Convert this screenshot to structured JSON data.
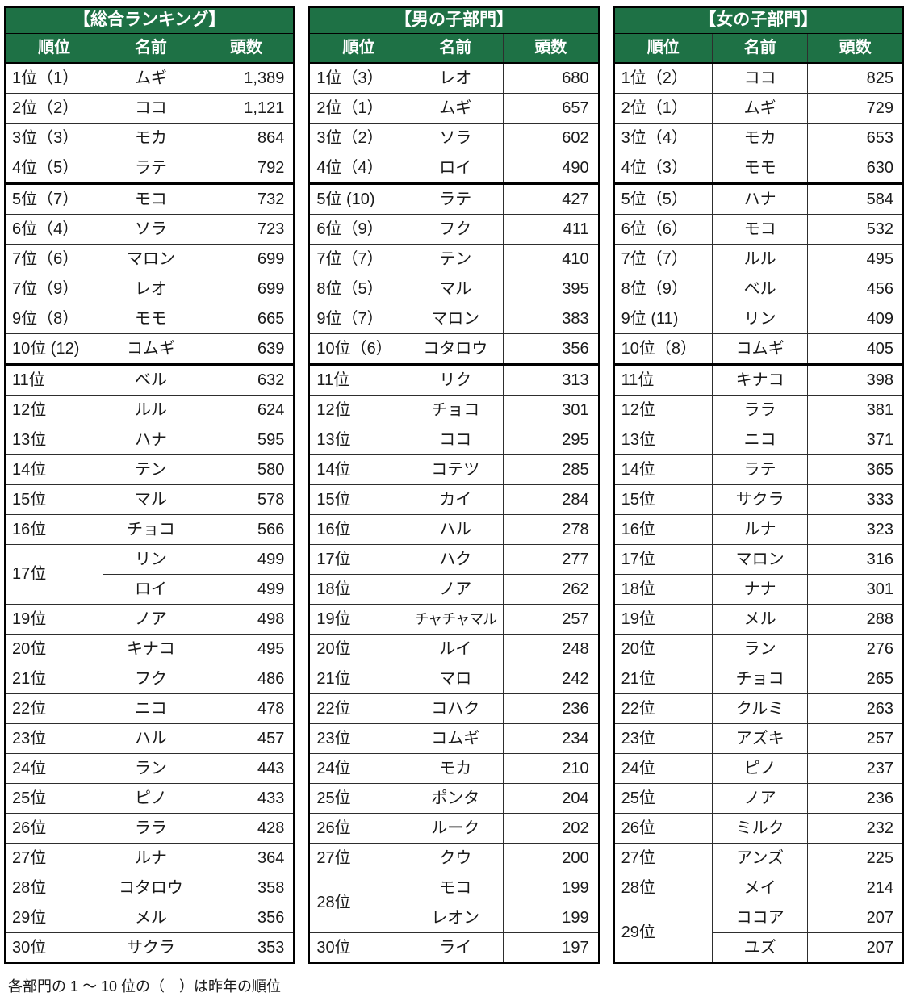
{
  "footnote": "各部門の 1 ～ 10 位の（　）は昨年の順位",
  "columns": {
    "rank": "順位",
    "name": "名前",
    "count": "頭数"
  },
  "colors": {
    "header_green": "#1e7145",
    "header_text": "#ffffff"
  },
  "tables": [
    {
      "title": "【総合ランキング】",
      "rows": [
        {
          "rank": "1位（1）",
          "name": "ムギ",
          "count": "1,389"
        },
        {
          "rank": "2位（2）",
          "name": "ココ",
          "count": "1,121"
        },
        {
          "rank": "3位（3）",
          "name": "モカ",
          "count": "864"
        },
        {
          "rank": "4位（5）",
          "name": "ラテ",
          "count": "792"
        },
        {
          "rank": "5位（7）",
          "name": "モコ",
          "count": "732"
        },
        {
          "rank": "6位（4）",
          "name": "ソラ",
          "count": "723"
        },
        {
          "rank": "7位（6）",
          "name": "マロン",
          "count": "699"
        },
        {
          "rank": "7位（9）",
          "name": "レオ",
          "count": "699"
        },
        {
          "rank": "9位（8）",
          "name": "モモ",
          "count": "665"
        },
        {
          "rank": "10位 (12)",
          "name": "コムギ",
          "count": "639"
        },
        {
          "rank": "11位",
          "name": "ベル",
          "count": "632"
        },
        {
          "rank": "12位",
          "name": "ルル",
          "count": "624"
        },
        {
          "rank": "13位",
          "name": "ハナ",
          "count": "595"
        },
        {
          "rank": "14位",
          "name": "テン",
          "count": "580"
        },
        {
          "rank": "15位",
          "name": "マル",
          "count": "578"
        },
        {
          "rank": "16位",
          "name": "チョコ",
          "count": "566"
        },
        {
          "rank": "17位",
          "rank_rowspan": 2,
          "name": "リン",
          "count": "499"
        },
        {
          "rank": null,
          "name": "ロイ",
          "count": "499"
        },
        {
          "rank": "19位",
          "name": "ノア",
          "count": "498"
        },
        {
          "rank": "20位",
          "name": "キナコ",
          "count": "495"
        },
        {
          "rank": "21位",
          "name": "フク",
          "count": "486"
        },
        {
          "rank": "22位",
          "name": "ニコ",
          "count": "478"
        },
        {
          "rank": "23位",
          "name": "ハル",
          "count": "457"
        },
        {
          "rank": "24位",
          "name": "ラン",
          "count": "443"
        },
        {
          "rank": "25位",
          "name": "ピノ",
          "count": "433"
        },
        {
          "rank": "26位",
          "name": "ララ",
          "count": "428"
        },
        {
          "rank": "27位",
          "name": "ルナ",
          "count": "364"
        },
        {
          "rank": "28位",
          "name": "コタロウ",
          "count": "358"
        },
        {
          "rank": "29位",
          "name": "メル",
          "count": "356"
        },
        {
          "rank": "30位",
          "name": "サクラ",
          "count": "353"
        }
      ]
    },
    {
      "title": "【男の子部門】",
      "rows": [
        {
          "rank": "1位（3）",
          "name": "レオ",
          "count": "680"
        },
        {
          "rank": "2位（1）",
          "name": "ムギ",
          "count": "657"
        },
        {
          "rank": "3位（2）",
          "name": "ソラ",
          "count": "602"
        },
        {
          "rank": "4位（4）",
          "name": "ロイ",
          "count": "490"
        },
        {
          "rank": "5位 (10)",
          "name": "ラテ",
          "count": "427"
        },
        {
          "rank": "6位（9）",
          "name": "フク",
          "count": "411"
        },
        {
          "rank": "7位（7）",
          "name": "テン",
          "count": "410"
        },
        {
          "rank": "8位（5）",
          "name": "マル",
          "count": "395"
        },
        {
          "rank": "9位（7）",
          "name": "マロン",
          "count": "383"
        },
        {
          "rank": "10位（6）",
          "name": "コタロウ",
          "count": "356"
        },
        {
          "rank": "11位",
          "name": "リク",
          "count": "313"
        },
        {
          "rank": "12位",
          "name": "チョコ",
          "count": "301"
        },
        {
          "rank": "13位",
          "name": "ココ",
          "count": "295"
        },
        {
          "rank": "14位",
          "name": "コテツ",
          "count": "285"
        },
        {
          "rank": "15位",
          "name": "カイ",
          "count": "284"
        },
        {
          "rank": "16位",
          "name": "ハル",
          "count": "278"
        },
        {
          "rank": "17位",
          "name": "ハク",
          "count": "277"
        },
        {
          "rank": "18位",
          "name": "ノア",
          "count": "262"
        },
        {
          "rank": "19位",
          "name": "チャチャマル",
          "count": "257"
        },
        {
          "rank": "20位",
          "name": "ルイ",
          "count": "248"
        },
        {
          "rank": "21位",
          "name": "マロ",
          "count": "242"
        },
        {
          "rank": "22位",
          "name": "コハク",
          "count": "236"
        },
        {
          "rank": "23位",
          "name": "コムギ",
          "count": "234"
        },
        {
          "rank": "24位",
          "name": "モカ",
          "count": "210"
        },
        {
          "rank": "25位",
          "name": "ポンタ",
          "count": "204"
        },
        {
          "rank": "26位",
          "name": "ルーク",
          "count": "202"
        },
        {
          "rank": "27位",
          "name": "クウ",
          "count": "200"
        },
        {
          "rank": "28位",
          "rank_rowspan": 2,
          "name": "モコ",
          "count": "199"
        },
        {
          "rank": null,
          "name": "レオン",
          "count": "199"
        },
        {
          "rank": "30位",
          "name": "ライ",
          "count": "197"
        }
      ]
    },
    {
      "title": "【女の子部門】",
      "rows": [
        {
          "rank": "1位（2）",
          "name": "ココ",
          "count": "825"
        },
        {
          "rank": "2位（1）",
          "name": "ムギ",
          "count": "729"
        },
        {
          "rank": "3位（4）",
          "name": "モカ",
          "count": "653"
        },
        {
          "rank": "4位（3）",
          "name": "モモ",
          "count": "630"
        },
        {
          "rank": "5位（5）",
          "name": "ハナ",
          "count": "584"
        },
        {
          "rank": "6位（6）",
          "name": "モコ",
          "count": "532"
        },
        {
          "rank": "7位（7）",
          "name": "ルル",
          "count": "495"
        },
        {
          "rank": "8位（9）",
          "name": "ベル",
          "count": "456"
        },
        {
          "rank": "9位 (11)",
          "name": "リン",
          "count": "409"
        },
        {
          "rank": "10位（8）",
          "name": "コムギ",
          "count": "405"
        },
        {
          "rank": "11位",
          "name": "キナコ",
          "count": "398"
        },
        {
          "rank": "12位",
          "name": "ララ",
          "count": "381"
        },
        {
          "rank": "13位",
          "name": "ニコ",
          "count": "371"
        },
        {
          "rank": "14位",
          "name": "ラテ",
          "count": "365"
        },
        {
          "rank": "15位",
          "name": "サクラ",
          "count": "333"
        },
        {
          "rank": "16位",
          "name": "ルナ",
          "count": "323"
        },
        {
          "rank": "17位",
          "name": "マロン",
          "count": "316"
        },
        {
          "rank": "18位",
          "name": "ナナ",
          "count": "301"
        },
        {
          "rank": "19位",
          "name": "メル",
          "count": "288"
        },
        {
          "rank": "20位",
          "name": "ラン",
          "count": "276"
        },
        {
          "rank": "21位",
          "name": "チョコ",
          "count": "265"
        },
        {
          "rank": "22位",
          "name": "クルミ",
          "count": "263"
        },
        {
          "rank": "23位",
          "name": "アズキ",
          "count": "257"
        },
        {
          "rank": "24位",
          "name": "ピノ",
          "count": "237"
        },
        {
          "rank": "25位",
          "name": "ノア",
          "count": "236"
        },
        {
          "rank": "26位",
          "name": "ミルク",
          "count": "232"
        },
        {
          "rank": "27位",
          "name": "アンズ",
          "count": "225"
        },
        {
          "rank": "28位",
          "name": "メイ",
          "count": "214"
        },
        {
          "rank": "29位",
          "rank_rowspan": 2,
          "name": "ココア",
          "count": "207"
        },
        {
          "rank": null,
          "name": "ユズ",
          "count": "207"
        }
      ]
    }
  ]
}
